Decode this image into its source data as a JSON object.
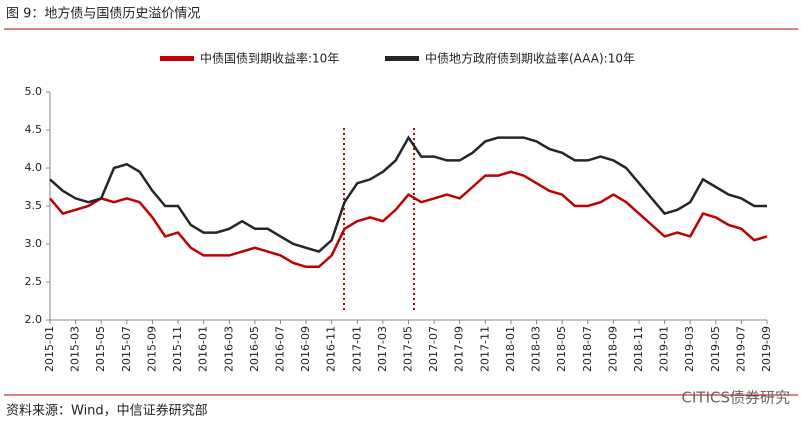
{
  "header": {
    "title": "图 9：地方债与国债历史溢价情况"
  },
  "chart_data": {
    "type": "line",
    "categories": [
      "2015-01",
      null,
      "2015-03",
      null,
      "2015-05",
      null,
      "2015-07",
      null,
      "2015-09",
      null,
      "2015-11",
      null,
      "2016-01",
      null,
      "2016-03",
      null,
      "2016-05",
      null,
      "2016-07",
      null,
      "2016-09",
      null,
      "2016-11",
      null,
      "2017-01",
      null,
      "2017-03",
      null,
      "2017-05",
      null,
      "2017-07",
      null,
      "2017-09",
      null,
      "2017-11",
      null,
      "2018-01",
      null,
      "2018-03",
      null,
      "2018-05",
      null,
      "2018-07",
      null,
      "2018-09",
      null,
      "2018-11",
      null,
      "2019-01",
      null,
      "2019-03",
      null,
      "2019-05",
      null,
      "2019-07",
      null,
      "2019-09"
    ],
    "series": [
      {
        "name": "中债国债到期收益率:10年",
        "color": "#c00000",
        "values": [
          3.6,
          3.4,
          3.45,
          3.5,
          3.6,
          3.55,
          3.6,
          3.55,
          3.35,
          3.1,
          3.15,
          2.95,
          2.85,
          2.85,
          2.85,
          2.9,
          2.95,
          2.9,
          2.85,
          2.75,
          2.7,
          2.7,
          2.85,
          3.2,
          3.3,
          3.35,
          3.3,
          3.45,
          3.65,
          3.55,
          3.6,
          3.65,
          3.6,
          3.75,
          3.9,
          3.9,
          3.95,
          3.9,
          3.8,
          3.7,
          3.65,
          3.5,
          3.5,
          3.55,
          3.65,
          3.55,
          3.4,
          3.25,
          3.1,
          3.15,
          3.1,
          3.4,
          3.35,
          3.25,
          3.2,
          3.05,
          3.1
        ]
      },
      {
        "name": "中债地方政府债到期收益率(AAA):10年",
        "color": "#262626",
        "values": [
          3.85,
          3.7,
          3.6,
          3.55,
          3.6,
          4.0,
          4.05,
          3.95,
          3.7,
          3.5,
          3.5,
          3.25,
          3.15,
          3.15,
          3.2,
          3.3,
          3.2,
          3.2,
          3.1,
          3.0,
          2.95,
          2.9,
          3.05,
          3.55,
          3.8,
          3.85,
          3.95,
          4.1,
          4.4,
          4.15,
          4.15,
          4.1,
          4.1,
          4.2,
          4.35,
          4.4,
          4.4,
          4.4,
          4.35,
          4.25,
          4.2,
          4.1,
          4.1,
          4.15,
          4.1,
          4.0,
          3.8,
          3.6,
          3.4,
          3.45,
          3.55,
          3.85,
          3.75,
          3.65,
          3.6,
          3.5,
          3.5
        ]
      }
    ],
    "ylim": [
      2,
      5
    ],
    "yticks": [
      {
        "value": 2,
        "label": "2.0"
      },
      {
        "value": 2.5,
        "label": "2.5"
      },
      {
        "value": 3,
        "label": "3.0"
      },
      {
        "value": 3.5,
        "label": "3.5"
      },
      {
        "value": 4,
        "label": "4.0"
      },
      {
        "value": 4.5,
        "label": "4.5"
      },
      {
        "value": 5,
        "label": "5.0"
      }
    ],
    "legend": "top"
  },
  "footer": {
    "source": "资料来源：Wind，中信证券研究部",
    "watermark": "CITICS债券研究"
  }
}
